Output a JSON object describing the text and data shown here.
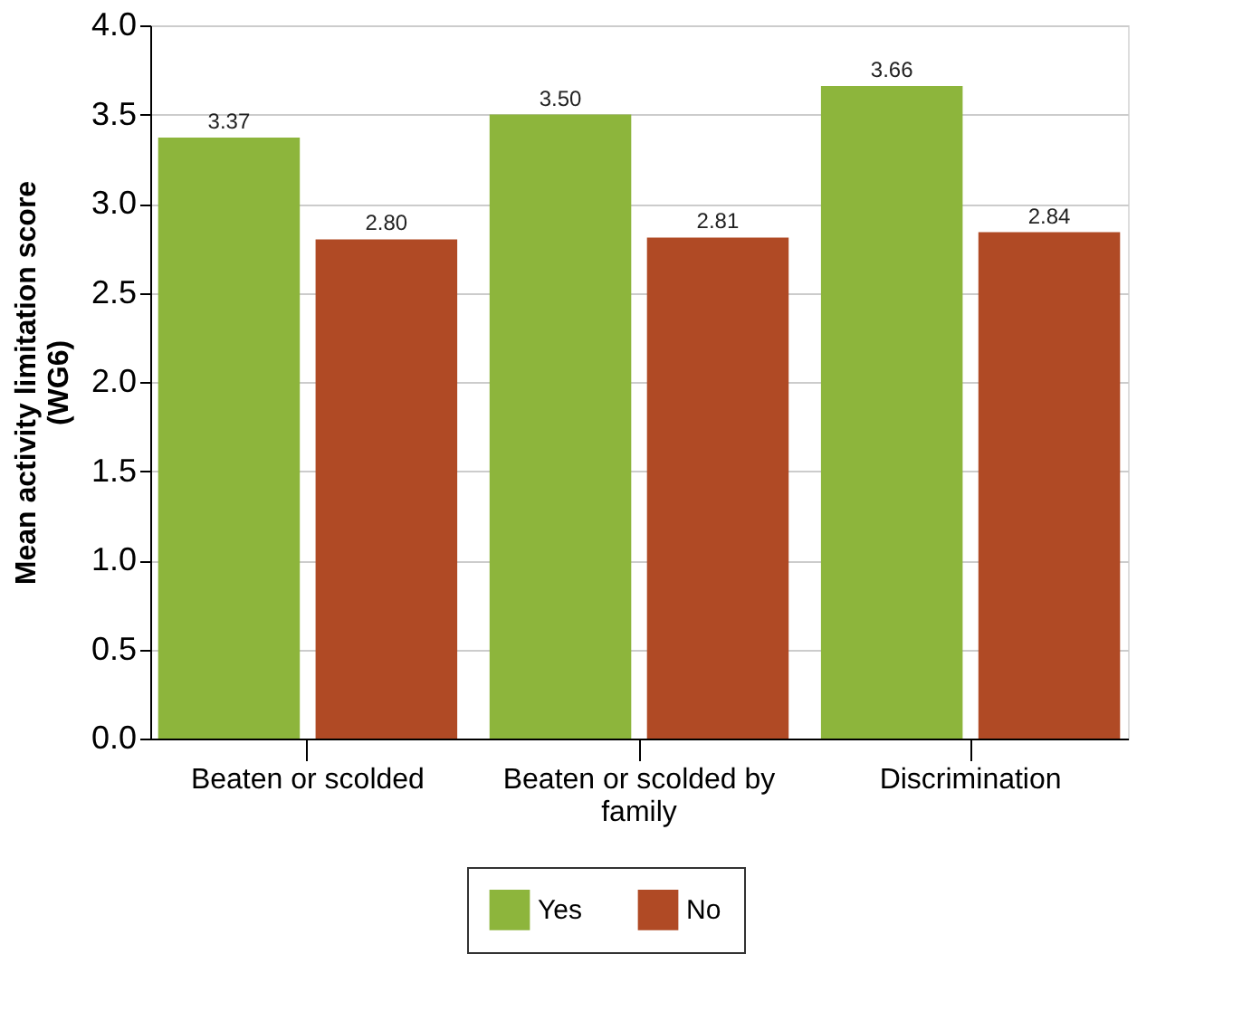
{
  "chart_data": {
    "type": "bar",
    "ylabel": "Mean activity limitation score\n(WG6)",
    "categories": [
      "Beaten or scolded",
      "Beaten or scolded by family",
      "Discrimination"
    ],
    "series": [
      {
        "name": "Yes",
        "color": "#8db53c",
        "values": [
          3.37,
          3.5,
          3.66
        ],
        "value_labels": [
          "3.37",
          "3.50",
          "3.66"
        ]
      },
      {
        "name": "No",
        "color": "#b04a25",
        "values": [
          2.8,
          2.81,
          2.84
        ],
        "value_labels": [
          "2.80",
          "2.81",
          "2.84"
        ]
      }
    ],
    "ylim": [
      0,
      4.0
    ],
    "yticks": [
      {
        "value": 0,
        "label": "0.0"
      },
      {
        "value": 0.5,
        "label": "0.5"
      },
      {
        "value": 1,
        "label": "1.0"
      },
      {
        "value": 1.5,
        "label": "1.5"
      },
      {
        "value": 2,
        "label": "2.0"
      },
      {
        "value": 2.5,
        "label": "2.5"
      },
      {
        "value": 3,
        "label": "3.0"
      },
      {
        "value": 3.5,
        "label": "3.5"
      },
      {
        "value": 4,
        "label": "4.0"
      }
    ],
    "grid": "y",
    "legend": "bottom"
  }
}
